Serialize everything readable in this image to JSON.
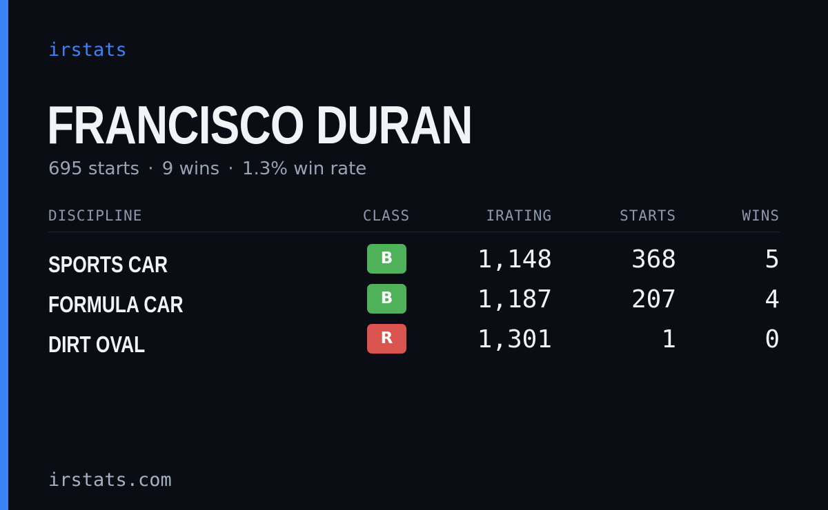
{
  "brand": "irstats",
  "driver": {
    "name": "FRANCISCO DURAN",
    "summary": {
      "starts": "695 starts",
      "wins": "9 wins",
      "win_rate": "1.3% win rate",
      "separator": "·"
    }
  },
  "table": {
    "headers": {
      "discipline": "DISCIPLINE",
      "class": "CLASS",
      "irating": "IRATING",
      "starts": "STARTS",
      "wins": "WINS"
    },
    "rows": [
      {
        "discipline": "SPORTS CAR",
        "class": "B",
        "class_color": "#4fb25a",
        "irating": "1,148",
        "starts": "368",
        "wins": "5"
      },
      {
        "discipline": "FORMULA CAR",
        "class": "B",
        "class_color": "#4fb25a",
        "irating": "1,187",
        "starts": "207",
        "wins": "4"
      },
      {
        "discipline": "DIRT OVAL",
        "class": "R",
        "class_color": "#d9534f",
        "irating": "1,301",
        "starts": "1",
        "wins": "0"
      }
    ]
  },
  "footer": {
    "site": "irstats.com"
  },
  "colors": {
    "accent": "#3b82f6",
    "background": "#0a0d14"
  }
}
